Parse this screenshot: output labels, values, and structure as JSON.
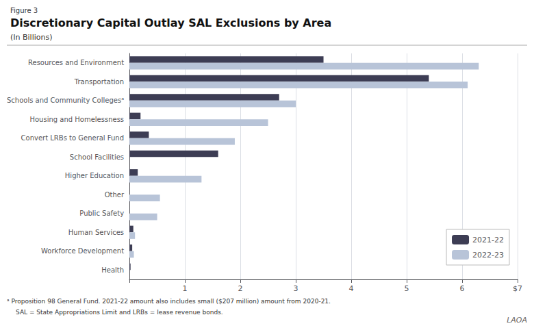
{
  "chart_data": {
    "type": "bar",
    "orientation": "horizontal",
    "figure_label": "Figure 3",
    "title": "Discretionary Capital Outlay SAL Exclusions by Area",
    "subtitle": "(In Billions)",
    "categories": [
      "Health",
      "Workforce Development",
      "Human Services",
      "Public Safety",
      "Other",
      "Higher Education",
      "School Facilities",
      "Convert LRBs to General Fund",
      "Housing and Homelessness",
      "Schools and Community Collegesᵃ",
      "Transportation",
      "Resources and Environment"
    ],
    "series": [
      {
        "name": "2021-22",
        "color": "#3d3d54",
        "values": [
          0.02,
          0.05,
          0.07,
          0.0,
          0.0,
          0.15,
          1.6,
          0.35,
          0.2,
          2.7,
          5.4,
          3.5
        ]
      },
      {
        "name": "2022-23",
        "color": "#b8c4d8",
        "values": [
          0.0,
          0.08,
          0.1,
          0.5,
          0.55,
          1.3,
          0.0,
          1.9,
          2.5,
          3.0,
          6.1,
          6.3
        ]
      }
    ],
    "xlim": [
      0,
      7
    ],
    "xticks": [
      {
        "value": 0,
        "label": ""
      },
      1,
      2,
      3,
      4,
      5,
      6,
      {
        "value": 7,
        "label": "$7"
      }
    ],
    "grid": true,
    "legend": "lower right",
    "footnotes": [
      "ᵃ Proposition 98 General Fund. 2021-22 amount also includes small ($207 million) amount from 2020-21.",
      "SAL = State Appropriations Limit and LRBs = lease revenue bonds."
    ],
    "logo": "LAOA"
  }
}
